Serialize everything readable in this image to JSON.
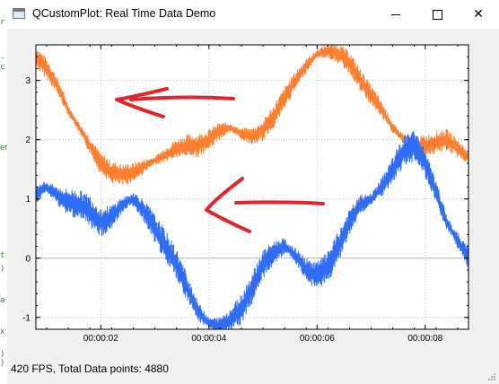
{
  "window": {
    "title": "QCustomPlot: Real Time Data Demo",
    "minimize_glyph": "",
    "close_glyph": "✕"
  },
  "status": {
    "text": "420 FPS, Total Data points: 4880"
  },
  "left_strip_glyphs": [
    "r",
    "-c",
    "en",
    "t",
    ")",
    "a",
    "x",
    ")",
    ")"
  ],
  "colors": {
    "series_blue": "#2e6df5",
    "series_orange": "#ff7f2e",
    "annotation_red": "#e0262b",
    "grid": "#c8c8c8"
  },
  "chart_data": {
    "type": "line",
    "title": "",
    "xlabel": "",
    "ylabel": "",
    "x_ticks": [
      "00:00:02",
      "00:00:04",
      "00:00:06",
      "00:00:08"
    ],
    "y_ticks": [
      "3",
      "2",
      "1",
      "0",
      "-1"
    ],
    "xlim": [
      0.8,
      8.8
    ],
    "ylim": [
      -1.2,
      3.6
    ],
    "grid": true,
    "legend": "none",
    "series": [
      {
        "color": "#ff7f2e",
        "x": [
          0.8,
          1.0,
          1.2,
          1.4,
          1.6,
          1.8,
          2.0,
          2.2,
          2.4,
          2.6,
          2.8,
          3.0,
          3.2,
          3.4,
          3.6,
          3.8,
          4.0,
          4.2,
          4.4,
          4.6,
          4.8,
          5.0,
          5.2,
          5.4,
          5.6,
          5.8,
          6.0,
          6.2,
          6.4,
          6.6,
          6.8,
          7.0,
          7.2,
          7.4,
          7.6,
          7.8,
          8.0,
          8.2,
          8.4,
          8.6,
          8.8
        ],
        "y": [
          3.4,
          3.2,
          2.9,
          2.5,
          2.2,
          1.9,
          1.6,
          1.45,
          1.4,
          1.45,
          1.55,
          1.65,
          1.75,
          1.85,
          1.9,
          1.9,
          2.0,
          2.15,
          2.2,
          2.1,
          2.05,
          2.15,
          2.4,
          2.7,
          3.0,
          3.25,
          3.45,
          3.5,
          3.45,
          3.3,
          3.0,
          2.75,
          2.5,
          2.2,
          2.0,
          1.9,
          1.9,
          1.95,
          2.0,
          1.85,
          1.7
        ],
        "noise": 0.13
      },
      {
        "color": "#2e6df5",
        "x": [
          0.8,
          1.0,
          1.2,
          1.4,
          1.6,
          1.8,
          2.0,
          2.2,
          2.4,
          2.6,
          2.8,
          3.0,
          3.2,
          3.4,
          3.6,
          3.8,
          4.0,
          4.2,
          4.4,
          4.6,
          4.8,
          5.0,
          5.2,
          5.4,
          5.6,
          5.8,
          6.0,
          6.2,
          6.4,
          6.6,
          6.8,
          7.0,
          7.2,
          7.4,
          7.6,
          7.8,
          8.0,
          8.2,
          8.4,
          8.6,
          8.8
        ],
        "y": [
          1.1,
          1.2,
          1.05,
          0.95,
          0.9,
          0.8,
          0.6,
          0.7,
          0.9,
          1.0,
          0.8,
          0.5,
          0.2,
          -0.1,
          -0.5,
          -0.9,
          -1.1,
          -1.15,
          -1.05,
          -0.85,
          -0.5,
          -0.1,
          0.1,
          0.2,
          0.05,
          -0.2,
          -0.3,
          -0.15,
          0.2,
          0.6,
          0.9,
          1.0,
          1.2,
          1.5,
          1.8,
          1.9,
          1.6,
          1.1,
          0.6,
          0.3,
          0.0
        ],
        "noise": 0.18
      }
    ],
    "annotations": [
      {
        "type": "arrow",
        "direction": "left",
        "color": "#e0262b",
        "near_series": 0
      },
      {
        "type": "arrow",
        "direction": "left",
        "color": "#e0262b",
        "near_series": 1
      }
    ]
  }
}
